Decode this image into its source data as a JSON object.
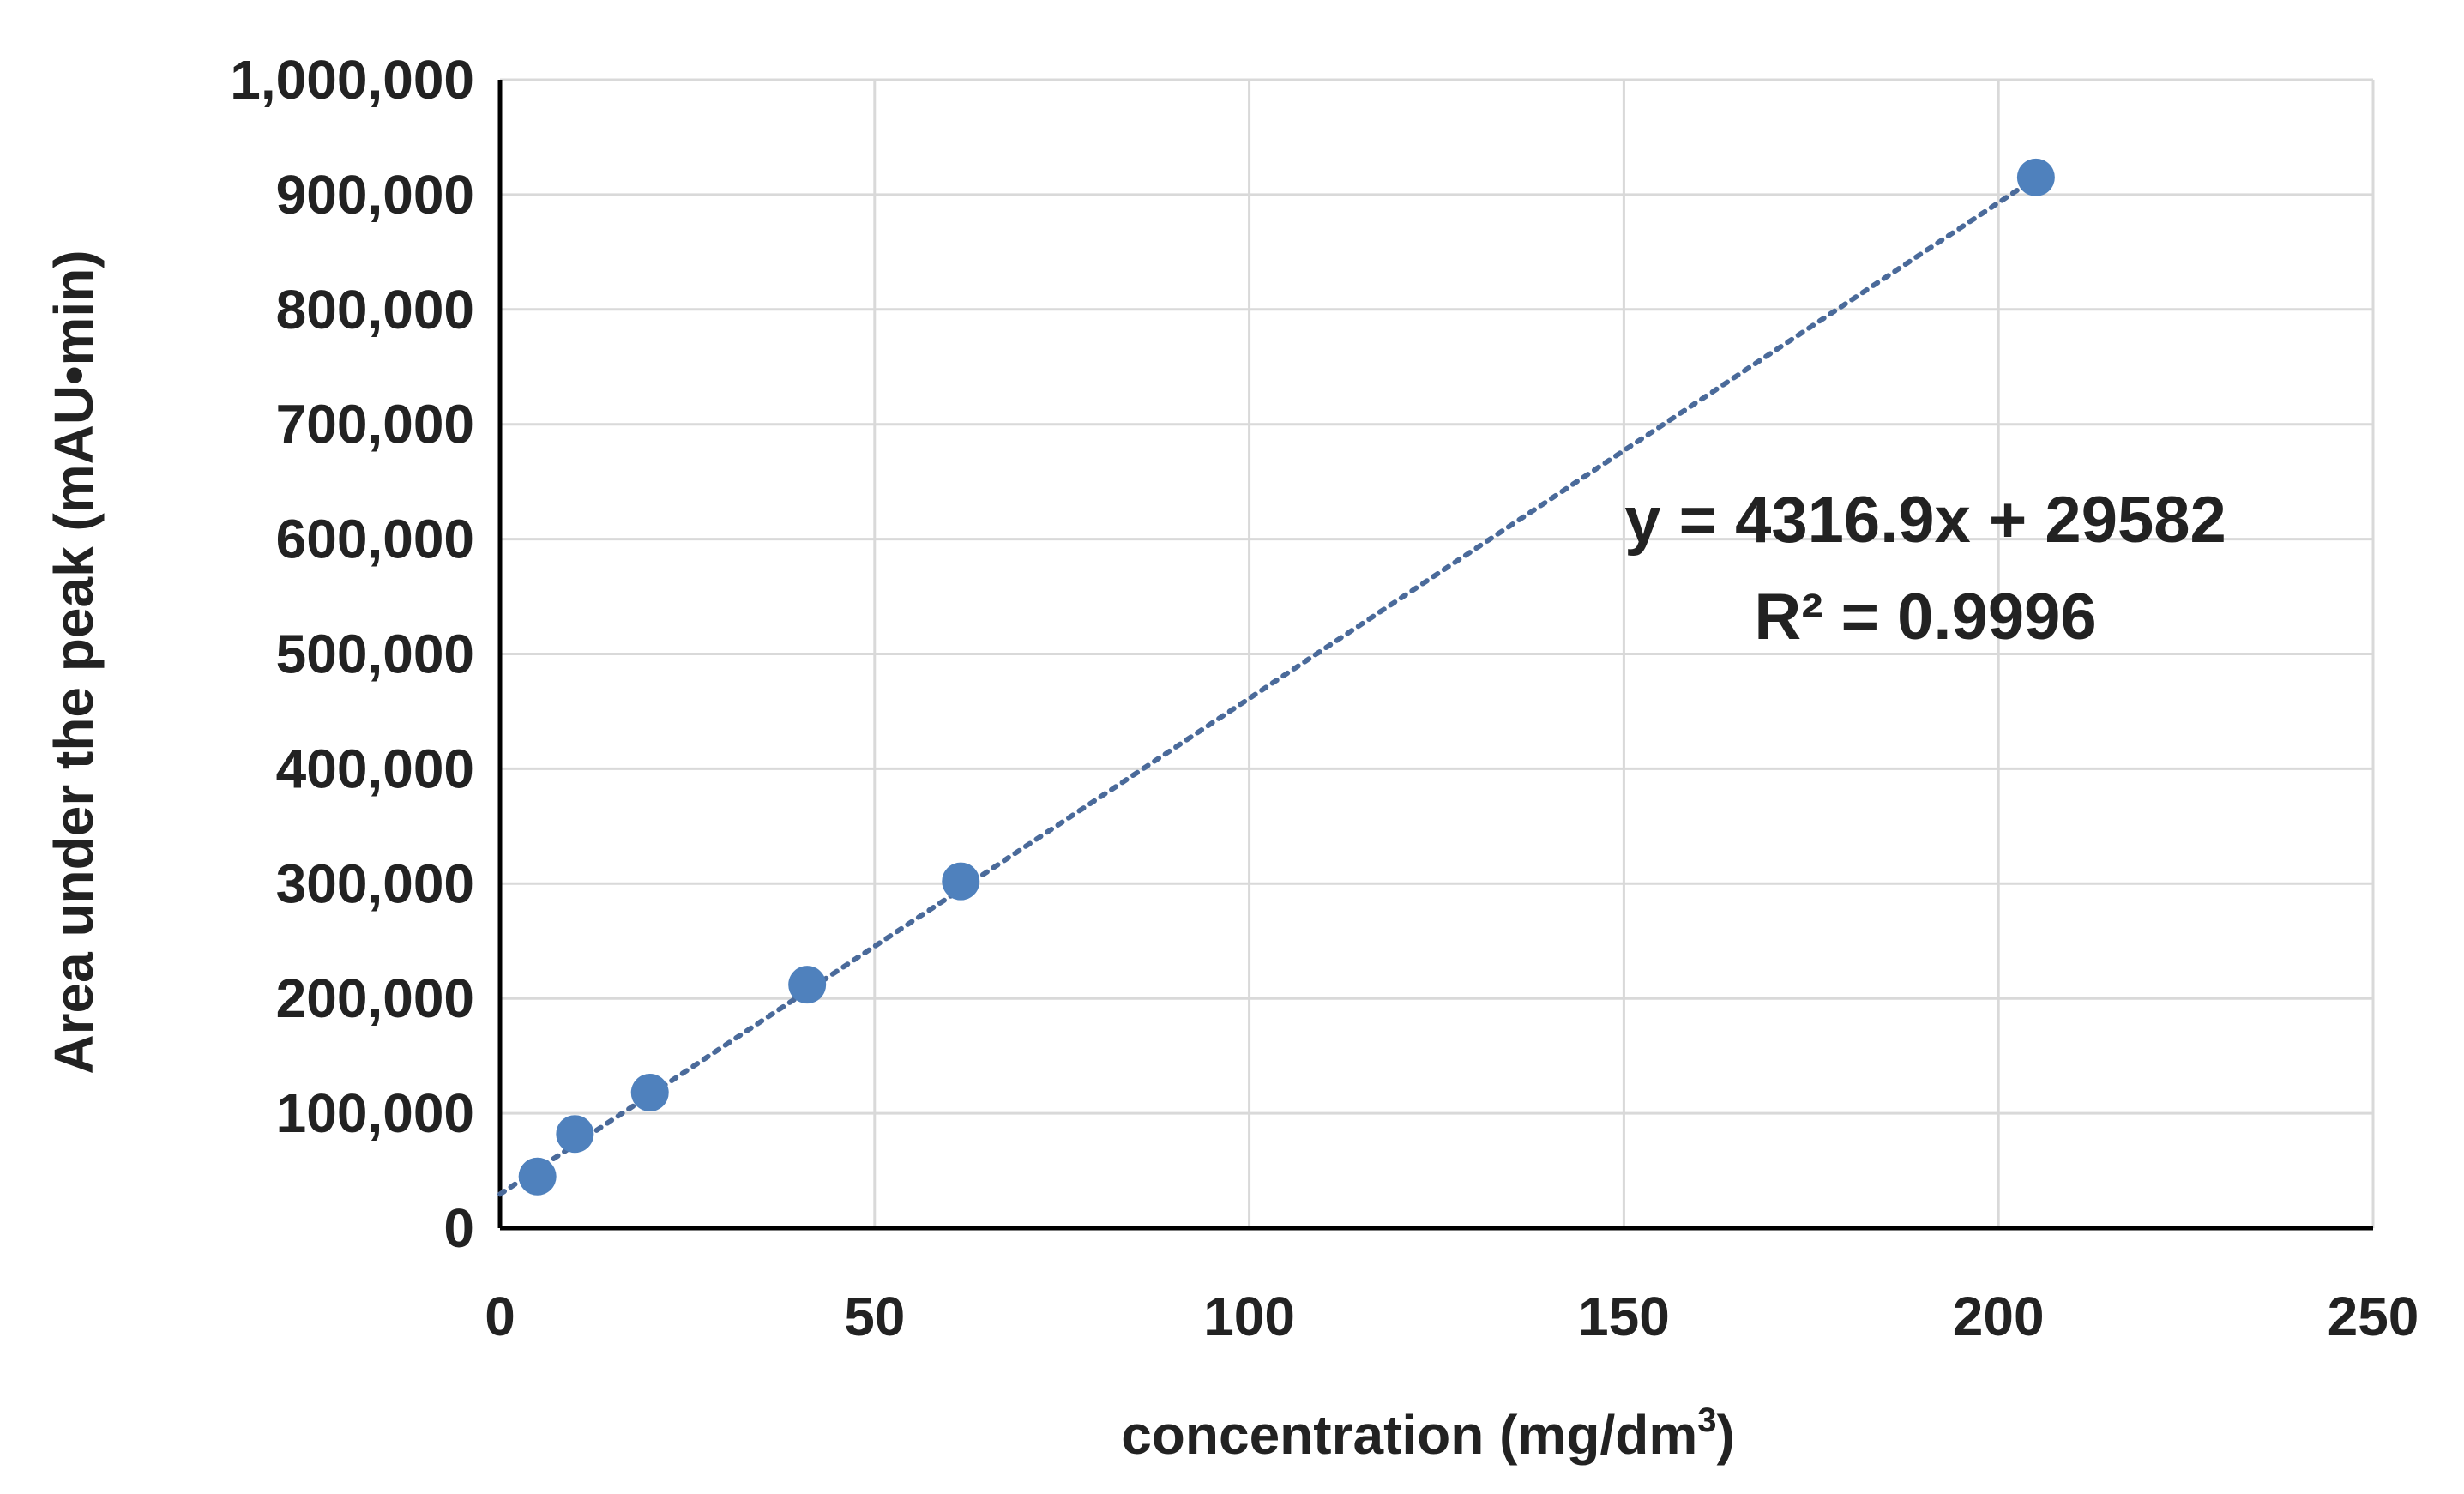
{
  "chart_data": {
    "type": "scatter",
    "title": "",
    "xlabel": "concentration (mg/dm",
    "xlabel_sup": "3",
    "xlabel_close": ")",
    "ylabel": "Area under the peak (mAU•min)",
    "xlim": [
      0,
      250
    ],
    "ylim": [
      0,
      1000000
    ],
    "xticks": [
      0,
      50,
      100,
      150,
      200,
      250
    ],
    "yticks": [
      0,
      100000,
      200000,
      300000,
      400000,
      500000,
      600000,
      700000,
      800000,
      900000,
      1000000
    ],
    "xtick_labels": [
      "0",
      "50",
      "100",
      "150",
      "200",
      "250"
    ],
    "ytick_labels": [
      "0",
      "100,000",
      "200,000",
      "300,000",
      "400,000",
      "500,000",
      "600,000",
      "700,000",
      "800,000",
      "900,000",
      "1,000,000"
    ],
    "grid": true,
    "series": [
      {
        "x": [
          5,
          10,
          20,
          41,
          61.5,
          205
        ],
        "y": [
          45000,
          82000,
          118000,
          212000,
          302000,
          915000
        ],
        "color": "#4f81bd"
      }
    ],
    "trendline": {
      "style": "dotted",
      "color": "#4a6a9a",
      "slope": 4316.9,
      "intercept": 29582,
      "x_range": [
        0,
        205
      ]
    },
    "equation": "y = 4316.9x + 29582",
    "r_squared": "R² = 0.9996"
  }
}
